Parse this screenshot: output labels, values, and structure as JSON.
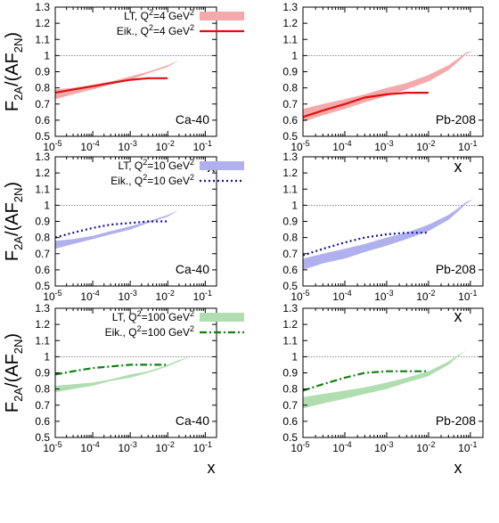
{
  "colors": {
    "band_q4": "#f4aaaa",
    "line_q4": "#e01010",
    "band_q10": "#b0b0ee",
    "line_q10": "#1010a0",
    "band_q100": "#b0deb0",
    "line_q100": "#108010"
  },
  "ylabel": {
    "main": "F",
    "sub1": "2A",
    "mid": "/(AF",
    "sub2": "2N",
    "end": ")"
  },
  "chart_data": [
    {
      "type": "area",
      "row": 0,
      "col": 0,
      "nucleus": "Ca-40",
      "xlabel": "x",
      "xscale": "log",
      "xlim": [
        1e-05,
        0.2
      ],
      "ylim": [
        0.5,
        1.3
      ],
      "x_ticks": [
        {
          "base": "10",
          "exp": "-5"
        },
        {
          "base": "10",
          "exp": "-4"
        },
        {
          "base": "10",
          "exp": "-3"
        },
        {
          "base": "10",
          "exp": "-2"
        },
        {
          "base": "10",
          "exp": "-1"
        }
      ],
      "y_ticks": [
        "0.5",
        "0.6",
        "0.7",
        "0.8",
        "0.9",
        "1",
        "1.1",
        "1.2",
        "1.3"
      ],
      "reference_line": 1.0,
      "legend": [
        {
          "label": "LT, Q",
          "sup": "2",
          "label2": "=4 GeV",
          "sup2": "2",
          "style": "band",
          "color": "#f4aaaa"
        },
        {
          "label": "Eik., Q",
          "sup": "2",
          "label2": "=4 GeV",
          "sup2": "2",
          "style": "solid",
          "color": "#e01010"
        }
      ],
      "band": {
        "x": [
          1e-05,
          3e-05,
          0.0001,
          0.0003,
          0.001,
          0.003,
          0.01,
          0.02,
          0.04
        ],
        "lower": [
          0.73,
          0.76,
          0.79,
          0.82,
          0.85,
          0.89,
          0.93,
          0.97,
          1.0
        ],
        "upper": [
          0.79,
          0.8,
          0.82,
          0.84,
          0.87,
          0.9,
          0.94,
          0.97,
          1.0
        ]
      },
      "line": {
        "style": "solid",
        "x": [
          1e-05,
          3e-05,
          0.0001,
          0.0003,
          0.001,
          0.003,
          0.01
        ],
        "y": [
          0.77,
          0.79,
          0.81,
          0.83,
          0.85,
          0.86,
          0.86
        ]
      }
    },
    {
      "type": "area",
      "row": 0,
      "col": 1,
      "nucleus": "Pb-208",
      "xlabel": "x",
      "xscale": "log",
      "xlim": [
        1e-05,
        0.2
      ],
      "ylim": [
        0.5,
        1.3
      ],
      "x_ticks": [
        {
          "base": "10",
          "exp": "-5"
        },
        {
          "base": "10",
          "exp": "-4"
        },
        {
          "base": "10",
          "exp": "-3"
        },
        {
          "base": "10",
          "exp": "-2"
        },
        {
          "base": "10",
          "exp": "-1"
        }
      ],
      "y_ticks": [
        "0.5",
        "0.6",
        "0.7",
        "0.8",
        "0.9",
        "1",
        "1.1",
        "1.2",
        "1.3"
      ],
      "reference_line": 1.0,
      "legend": [],
      "band": {
        "x": [
          1e-05,
          3e-05,
          0.0001,
          0.0003,
          0.001,
          0.003,
          0.01,
          0.03,
          0.05,
          0.08,
          0.12
        ],
        "lower": [
          0.59,
          0.63,
          0.67,
          0.71,
          0.75,
          0.79,
          0.84,
          0.91,
          0.96,
          1.01,
          1.03
        ],
        "upper": [
          0.67,
          0.7,
          0.73,
          0.76,
          0.8,
          0.83,
          0.88,
          0.94,
          0.98,
          1.02,
          1.03
        ]
      },
      "line": {
        "style": "solid",
        "x": [
          1e-05,
          3e-05,
          0.0001,
          0.0003,
          0.001,
          0.003,
          0.01
        ],
        "y": [
          0.62,
          0.66,
          0.7,
          0.74,
          0.76,
          0.77,
          0.77
        ]
      }
    },
    {
      "type": "area",
      "row": 1,
      "col": 0,
      "nucleus": "Ca-40",
      "xlabel": "x",
      "xscale": "log",
      "xlim": [
        1e-05,
        0.2
      ],
      "ylim": [
        0.5,
        1.3
      ],
      "x_ticks": [
        {
          "base": "10",
          "exp": "-5"
        },
        {
          "base": "10",
          "exp": "-4"
        },
        {
          "base": "10",
          "exp": "-3"
        },
        {
          "base": "10",
          "exp": "-2"
        },
        {
          "base": "10",
          "exp": "-1"
        }
      ],
      "y_ticks": [
        "0.5",
        "0.6",
        "0.7",
        "0.8",
        "0.9",
        "1",
        "1.1",
        "1.2",
        "1.3"
      ],
      "reference_line": 1.0,
      "legend": [
        {
          "label": "LT, Q",
          "sup": "2",
          "label2": "=10 GeV",
          "sup2": "2",
          "style": "band",
          "color": "#b0b0ee"
        },
        {
          "label": "Eik., Q",
          "sup": "2",
          "label2": "=10 GeV",
          "sup2": "2",
          "style": "dotted",
          "color": "#1010a0"
        }
      ],
      "band": {
        "x": [
          1e-05,
          3e-05,
          0.0001,
          0.0003,
          0.001,
          0.003,
          0.01,
          0.02,
          0.04
        ],
        "lower": [
          0.73,
          0.76,
          0.79,
          0.82,
          0.85,
          0.89,
          0.93,
          0.97,
          1.0
        ],
        "upper": [
          0.78,
          0.79,
          0.81,
          0.84,
          0.87,
          0.9,
          0.94,
          0.97,
          1.0
        ]
      },
      "line": {
        "style": "dotted",
        "x": [
          1e-05,
          3e-05,
          0.0001,
          0.0003,
          0.001,
          0.003,
          0.01
        ],
        "y": [
          0.8,
          0.83,
          0.86,
          0.88,
          0.89,
          0.9,
          0.9
        ]
      }
    },
    {
      "type": "area",
      "row": 1,
      "col": 1,
      "nucleus": "Pb-208",
      "xlabel": "x",
      "xscale": "log",
      "xlim": [
        1e-05,
        0.2
      ],
      "ylim": [
        0.5,
        1.3
      ],
      "x_ticks": [
        {
          "base": "10",
          "exp": "-5"
        },
        {
          "base": "10",
          "exp": "-4"
        },
        {
          "base": "10",
          "exp": "-3"
        },
        {
          "base": "10",
          "exp": "-2"
        },
        {
          "base": "10",
          "exp": "-1"
        }
      ],
      "y_ticks": [
        "0.5",
        "0.6",
        "0.7",
        "0.8",
        "0.9",
        "1",
        "1.1",
        "1.2",
        "1.3"
      ],
      "reference_line": 1.0,
      "legend": [],
      "band": {
        "x": [
          1e-05,
          3e-05,
          0.0001,
          0.0003,
          0.001,
          0.003,
          0.01,
          0.03,
          0.05,
          0.08,
          0.12
        ],
        "lower": [
          0.6,
          0.64,
          0.67,
          0.71,
          0.75,
          0.79,
          0.84,
          0.91,
          0.96,
          1.01,
          1.04
        ],
        "upper": [
          0.67,
          0.7,
          0.73,
          0.76,
          0.8,
          0.83,
          0.88,
          0.94,
          0.98,
          1.02,
          1.04
        ]
      },
      "line": {
        "style": "dotted",
        "x": [
          1e-05,
          3e-05,
          0.0001,
          0.0003,
          0.001,
          0.003,
          0.01
        ],
        "y": [
          0.69,
          0.73,
          0.77,
          0.8,
          0.82,
          0.83,
          0.83
        ]
      }
    },
    {
      "type": "area",
      "row": 2,
      "col": 0,
      "nucleus": "Ca-40",
      "xlabel": "x",
      "xscale": "log",
      "xlim": [
        1e-05,
        0.2
      ],
      "ylim": [
        0.5,
        1.3
      ],
      "x_ticks": [
        {
          "base": "10",
          "exp": "-5"
        },
        {
          "base": "10",
          "exp": "-4"
        },
        {
          "base": "10",
          "exp": "-3"
        },
        {
          "base": "10",
          "exp": "-2"
        },
        {
          "base": "10",
          "exp": "-1"
        }
      ],
      "y_ticks": [
        "0.5",
        "0.6",
        "0.7",
        "0.8",
        "0.9",
        "1",
        "1.1",
        "1.2",
        "1.3"
      ],
      "reference_line": 1.0,
      "legend": [
        {
          "label": "LT, Q",
          "sup": "2",
          "label2": "=100 GeV",
          "sup2": "2",
          "style": "band",
          "color": "#b0deb0"
        },
        {
          "label": "Eik., Q",
          "sup": "2",
          "label2": "=100 GeV",
          "sup2": "2",
          "style": "dashdot",
          "color": "#108010"
        }
      ],
      "band": {
        "x": [
          1e-05,
          3e-05,
          0.0001,
          0.0003,
          0.001,
          0.003,
          0.01,
          0.02,
          0.04
        ],
        "lower": [
          0.78,
          0.8,
          0.82,
          0.85,
          0.87,
          0.9,
          0.94,
          0.97,
          1.0
        ],
        "upper": [
          0.82,
          0.83,
          0.84,
          0.86,
          0.89,
          0.91,
          0.95,
          0.98,
          1.0
        ]
      },
      "line": {
        "style": "dashdot",
        "x": [
          1e-05,
          3e-05,
          0.0001,
          0.0003,
          0.001,
          0.003,
          0.01
        ],
        "y": [
          0.89,
          0.91,
          0.93,
          0.94,
          0.95,
          0.95,
          0.95
        ]
      }
    },
    {
      "type": "area",
      "row": 2,
      "col": 1,
      "nucleus": "Pb-208",
      "xlabel": "x",
      "xscale": "log",
      "xlim": [
        1e-05,
        0.2
      ],
      "ylim": [
        0.5,
        1.3
      ],
      "x_ticks": [
        {
          "base": "10",
          "exp": "-5"
        },
        {
          "base": "10",
          "exp": "-4"
        },
        {
          "base": "10",
          "exp": "-3"
        },
        {
          "base": "10",
          "exp": "-2"
        },
        {
          "base": "10",
          "exp": "-1"
        }
      ],
      "y_ticks": [
        "0.5",
        "0.6",
        "0.7",
        "0.8",
        "0.9",
        "1",
        "1.1",
        "1.2",
        "1.3"
      ],
      "reference_line": 1.0,
      "legend": [],
      "band": {
        "x": [
          1e-05,
          3e-05,
          0.0001,
          0.0003,
          0.001,
          0.003,
          0.01,
          0.03,
          0.05,
          0.08,
          0.12
        ],
        "lower": [
          0.68,
          0.71,
          0.74,
          0.77,
          0.8,
          0.84,
          0.88,
          0.95,
          1.0,
          1.04,
          1.05
        ],
        "upper": [
          0.75,
          0.77,
          0.79,
          0.81,
          0.84,
          0.87,
          0.91,
          0.97,
          1.01,
          1.04,
          1.05
        ]
      },
      "line": {
        "style": "dashdot",
        "x": [
          1e-05,
          3e-05,
          0.0001,
          0.0003,
          0.001,
          0.003,
          0.01
        ],
        "y": [
          0.79,
          0.83,
          0.87,
          0.9,
          0.91,
          0.91,
          0.91
        ]
      }
    }
  ]
}
